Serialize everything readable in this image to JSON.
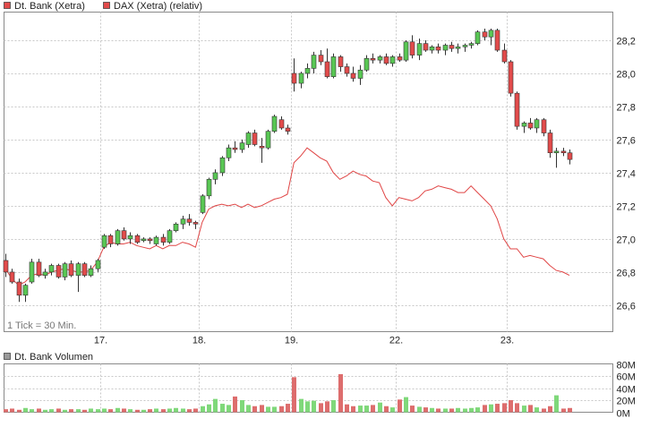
{
  "colors": {
    "up": "#59c754",
    "down": "#e24b4b",
    "vol_up": "#7fd87a",
    "vol_down": "#dd6d6d",
    "dax_line": "#e04545",
    "grid": "#c8c8c8",
    "legend_box_volume": "#9a9a9a",
    "border": "#8a8a8a"
  },
  "legend": {
    "main_series": "Dt. Bank (Xetra)",
    "comparison_series": "DAX (Xetra) (relativ)",
    "volume_series": "Dt. Bank Volumen"
  },
  "note": "1 Tick = 30 Min.",
  "chart_data": [
    {
      "type": "candlestick",
      "title": "",
      "y_ticks": [
        "26,6",
        "26,8",
        "27,0",
        "27,2",
        "27,4",
        "27,6",
        "27,8",
        "28,0",
        "28,2"
      ],
      "x_ticks": [
        "17.",
        "18.",
        "19.",
        "22.",
        "23."
      ],
      "ylim": [
        26.44,
        28.37
      ],
      "grid": true,
      "legend_position": "top-left",
      "interval": "30 Min.",
      "series": [
        {
          "name": "Dt. Bank (Xetra)",
          "candles": [
            [
              26.87,
              26.91,
              26.77,
              26.8
            ],
            [
              26.8,
              26.82,
              26.73,
              26.74
            ],
            [
              26.74,
              26.76,
              26.62,
              26.66
            ],
            [
              26.66,
              26.73,
              26.62,
              26.72
            ],
            [
              26.74,
              26.88,
              26.73,
              26.86
            ],
            [
              26.86,
              26.88,
              26.77,
              26.78
            ],
            [
              26.78,
              26.82,
              26.76,
              26.8
            ],
            [
              26.8,
              26.85,
              26.78,
              26.84
            ],
            [
              26.84,
              26.85,
              26.76,
              26.77
            ],
            [
              26.77,
              26.86,
              26.75,
              26.85
            ],
            [
              26.85,
              26.87,
              26.77,
              26.78
            ],
            [
              26.78,
              26.86,
              26.68,
              26.85
            ],
            [
              26.85,
              26.86,
              26.77,
              26.78
            ],
            [
              26.78,
              26.84,
              26.77,
              26.82
            ],
            [
              26.82,
              26.88,
              26.8,
              26.87
            ],
            [
              26.95,
              27.03,
              26.94,
              27.02
            ],
            [
              27.02,
              27.03,
              26.95,
              26.97
            ],
            [
              26.97,
              27.06,
              26.96,
              27.05
            ],
            [
              27.05,
              27.07,
              26.99,
              27.0
            ],
            [
              27.0,
              27.04,
              26.97,
              27.02
            ],
            [
              27.02,
              27.03,
              26.97,
              26.98
            ],
            [
              26.99,
              27.01,
              26.98,
              27.0
            ],
            [
              27.0,
              27.01,
              26.97,
              26.99
            ],
            [
              26.97,
              27.02,
              26.96,
              27.01
            ],
            [
              27.01,
              27.03,
              26.96,
              26.98
            ],
            [
              26.98,
              27.06,
              26.97,
              27.05
            ],
            [
              27.05,
              27.1,
              27.04,
              27.09
            ],
            [
              27.09,
              27.14,
              27.06,
              27.12
            ],
            [
              27.12,
              27.15,
              27.08,
              27.1
            ],
            [
              27.1,
              27.11,
              27.06,
              27.09
            ],
            [
              27.16,
              27.27,
              27.15,
              27.26
            ],
            [
              27.26,
              27.37,
              27.24,
              27.36
            ],
            [
              27.36,
              27.42,
              27.33,
              27.4
            ],
            [
              27.4,
              27.5,
              27.38,
              27.49
            ],
            [
              27.49,
              27.57,
              27.47,
              27.55
            ],
            [
              27.55,
              27.59,
              27.52,
              27.54
            ],
            [
              27.54,
              27.6,
              27.52,
              27.58
            ],
            [
              27.57,
              27.65,
              27.55,
              27.64
            ],
            [
              27.64,
              27.66,
              27.56,
              27.57
            ],
            [
              27.56,
              27.61,
              27.46,
              27.55
            ],
            [
              27.55,
              27.66,
              27.54,
              27.65
            ],
            [
              27.65,
              27.75,
              27.64,
              27.74
            ],
            [
              27.72,
              27.74,
              27.66,
              27.67
            ],
            [
              27.67,
              27.69,
              27.63,
              27.65
            ],
            [
              28.0,
              28.09,
              27.89,
              27.94
            ],
            [
              27.94,
              28.01,
              27.91,
              28.0
            ],
            [
              28.0,
              28.06,
              27.97,
              28.03
            ],
            [
              28.03,
              28.13,
              28.0,
              28.11
            ],
            [
              28.11,
              28.14,
              28.05,
              28.07
            ],
            [
              28.07,
              28.15,
              27.97,
              27.98
            ],
            [
              27.98,
              28.12,
              27.97,
              28.1
            ],
            [
              28.1,
              28.11,
              28.01,
              28.04
            ],
            [
              28.04,
              28.06,
              27.98,
              28.0
            ],
            [
              28.0,
              28.04,
              27.95,
              27.97
            ],
            [
              27.97,
              28.05,
              27.93,
              28.02
            ],
            [
              28.02,
              28.11,
              28.01,
              28.09
            ],
            [
              28.09,
              28.12,
              28.06,
              28.08
            ],
            [
              28.08,
              28.11,
              28.06,
              28.1
            ],
            [
              28.1,
              28.12,
              28.05,
              28.06
            ],
            [
              28.06,
              28.11,
              28.04,
              28.1
            ],
            [
              28.1,
              28.12,
              28.07,
              28.08
            ],
            [
              28.08,
              28.2,
              28.07,
              28.19
            ],
            [
              28.19,
              28.23,
              28.09,
              28.11
            ],
            [
              28.11,
              28.21,
              28.08,
              28.18
            ],
            [
              28.18,
              28.2,
              28.13,
              28.14
            ],
            [
              28.14,
              28.17,
              28.12,
              28.16
            ],
            [
              28.16,
              28.18,
              28.12,
              28.14
            ],
            [
              28.14,
              28.18,
              28.11,
              28.17
            ],
            [
              28.17,
              28.19,
              28.13,
              28.15
            ],
            [
              28.15,
              28.18,
              28.12,
              28.16
            ],
            [
              28.16,
              28.18,
              28.13,
              28.17
            ],
            [
              28.17,
              28.19,
              28.15,
              28.18
            ],
            [
              28.18,
              28.26,
              28.17,
              28.25
            ],
            [
              28.25,
              28.27,
              28.2,
              28.22
            ],
            [
              28.22,
              28.27,
              28.17,
              28.26
            ],
            [
              28.26,
              28.27,
              28.13,
              28.14
            ],
            [
              28.14,
              28.18,
              28.06,
              28.07
            ],
            [
              28.07,
              28.08,
              27.86,
              27.88
            ],
            [
              27.88,
              27.89,
              27.66,
              27.68
            ],
            [
              27.68,
              27.71,
              27.64,
              27.7
            ],
            [
              27.7,
              27.73,
              27.66,
              27.67
            ],
            [
              27.67,
              27.73,
              27.64,
              27.72
            ],
            [
              27.72,
              27.73,
              27.62,
              27.64
            ],
            [
              27.64,
              27.66,
              27.49,
              27.52
            ],
            [
              27.52,
              27.55,
              27.43,
              27.53
            ],
            [
              27.53,
              27.55,
              27.5,
              27.52
            ],
            [
              27.52,
              27.54,
              27.45,
              27.48
            ]
          ]
        },
        {
          "name": "DAX (Xetra) (relativ)",
          "values": [
            26.82,
            26.76,
            26.72,
            26.74,
            26.78,
            26.79,
            26.78,
            26.8,
            26.81,
            26.82,
            26.81,
            26.8,
            26.8,
            26.81,
            26.86,
            26.95,
            26.98,
            26.97,
            26.97,
            26.98,
            26.96,
            26.95,
            26.94,
            26.96,
            26.94,
            26.96,
            26.96,
            26.98,
            26.97,
            26.95,
            27.1,
            27.18,
            27.2,
            27.21,
            27.2,
            27.21,
            27.19,
            27.21,
            27.19,
            27.2,
            27.22,
            27.24,
            27.25,
            27.27,
            27.46,
            27.5,
            27.55,
            27.52,
            27.49,
            27.47,
            27.4,
            27.36,
            27.38,
            27.41,
            27.39,
            27.38,
            27.35,
            27.34,
            27.25,
            27.2,
            27.25,
            27.24,
            27.23,
            27.25,
            27.29,
            27.3,
            27.32,
            27.31,
            27.3,
            27.28,
            27.28,
            27.32,
            27.28,
            27.24,
            27.2,
            27.12,
            27.0,
            26.94,
            26.94,
            26.89,
            26.9,
            26.89,
            26.88,
            26.84,
            26.81,
            26.8,
            26.78
          ]
        }
      ]
    },
    {
      "type": "bar",
      "title": "",
      "y_ticks": [
        "0M",
        "20M",
        "40M",
        "60M",
        "80M"
      ],
      "ylim": [
        0,
        80
      ],
      "grid": true,
      "series": [
        {
          "name": "Dt. Bank Volumen",
          "values": [
            5,
            6,
            4,
            7,
            5,
            6,
            4,
            5,
            6,
            4,
            5,
            5,
            4,
            6,
            5,
            6,
            5,
            7,
            6,
            5,
            4,
            4,
            5,
            6,
            5,
            6,
            7,
            6,
            5,
            6,
            10,
            13,
            22,
            14,
            12,
            26,
            20,
            12,
            10,
            12,
            9,
            9,
            10,
            14,
            58,
            22,
            18,
            19,
            15,
            18,
            20,
            63,
            13,
            10,
            11,
            11,
            12,
            16,
            10,
            8,
            21,
            25,
            11,
            9,
            8,
            7,
            6,
            6,
            6,
            7,
            6,
            7,
            8,
            12,
            13,
            14,
            15,
            20,
            15,
            11,
            12,
            8,
            6,
            10,
            28,
            6,
            7
          ]
        }
      ]
    }
  ]
}
